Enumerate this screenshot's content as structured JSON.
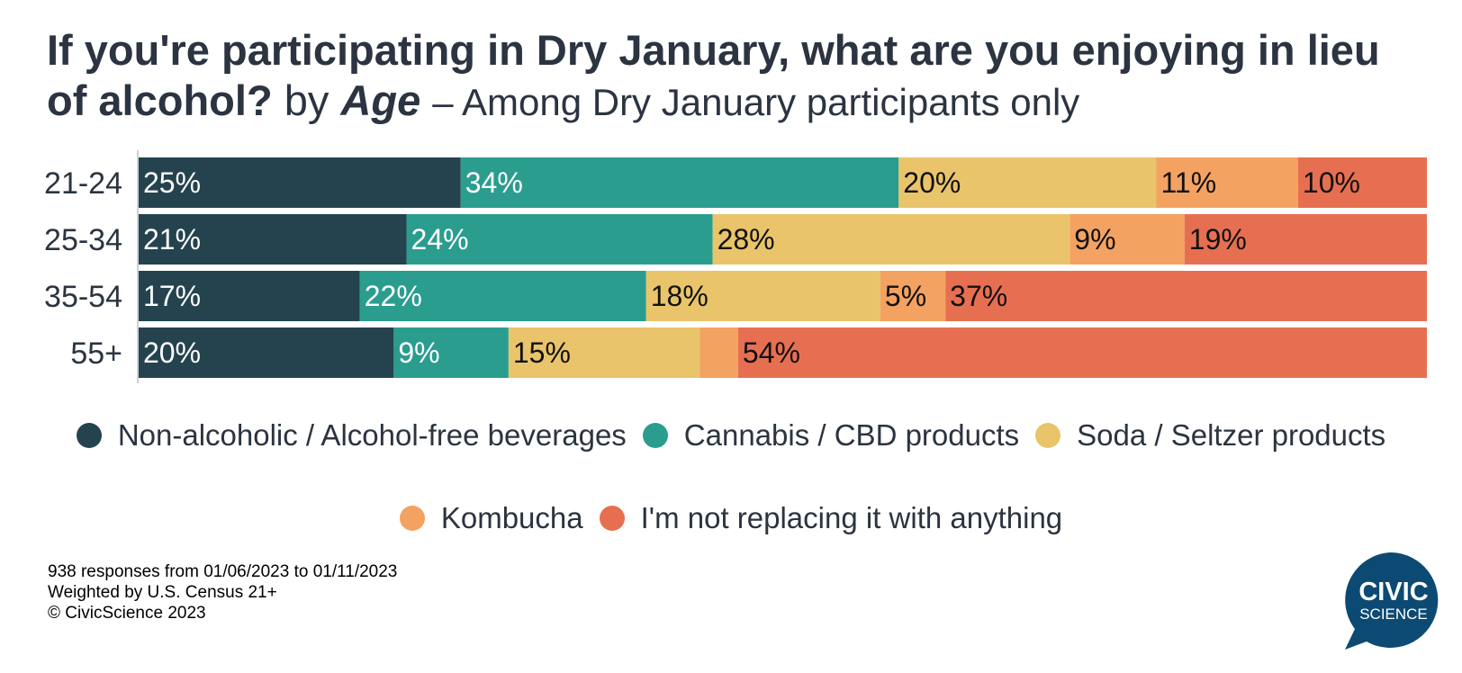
{
  "title": {
    "question": "If you're participating in Dry January, what are you enjoying in lieu of alcohol?",
    "by": "by",
    "dimension": "Age",
    "subtitle": "– Among Dry January participants only"
  },
  "chart_data": {
    "type": "bar",
    "orientation": "horizontal",
    "stacked": true,
    "normalized_percent": true,
    "categories": [
      "21-24",
      "25-34",
      "35-54",
      "55+"
    ],
    "series": [
      {
        "name": "Non-alcoholic / Alcohol-free beverages",
        "color": "#24434f",
        "label_color": "#ffffff",
        "values": [
          25,
          21,
          17,
          20
        ]
      },
      {
        "name": "Cannabis / CBD products",
        "color": "#2a9d8f",
        "label_color": "#ffffff",
        "values": [
          34,
          24,
          22,
          9
        ]
      },
      {
        "name": "Soda / Seltzer products",
        "color": "#e9c46a",
        "label_color": "#111111",
        "values": [
          20,
          28,
          18,
          15
        ]
      },
      {
        "name": "Kombucha",
        "color": "#f4a261",
        "label_color": "#111111",
        "values": [
          11,
          9,
          5,
          3
        ]
      },
      {
        "name": "I'm not replacing it with anything",
        "color": "#e76f51",
        "label_color": "#111111",
        "values": [
          10,
          19,
          37,
          54
        ]
      }
    ],
    "data_labels": [
      [
        "25%",
        "34%",
        "20%",
        "11%",
        "10%"
      ],
      [
        "21%",
        "24%",
        "28%",
        "9%",
        "19%"
      ],
      [
        "17%",
        "22%",
        "18%",
        "5%",
        "37%"
      ],
      [
        "20%",
        "9%",
        "15%",
        "",
        "54%"
      ]
    ],
    "legend_position": "bottom-center",
    "grid": false
  },
  "footnotes": [
    "938 responses from 01/06/2023 to 01/11/2023",
    "Weighted by U.S. Census 21+",
    "© CivicScience 2023"
  ],
  "logo": {
    "line1": "CIVIC",
    "line2": "SCIENCE",
    "color": "#0d4a73"
  }
}
